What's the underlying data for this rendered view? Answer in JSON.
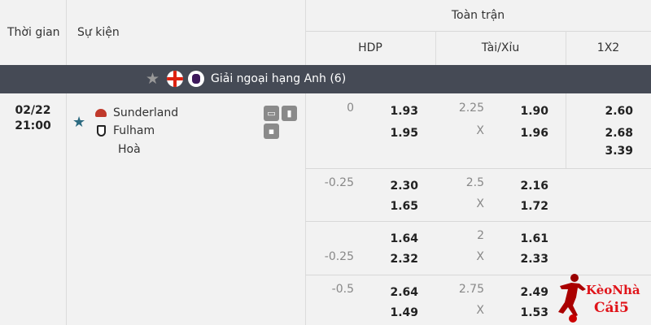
{
  "header": {
    "time": "Thời gian",
    "event": "Sự kiện",
    "full_match": "Toàn trận",
    "hdp": "HDP",
    "ou": "Tài/Xỉu",
    "x12": "1X2"
  },
  "league": {
    "name": "Giải ngoại hạng Anh (6)",
    "flag": "england-flag",
    "logo": "premier-league-logo"
  },
  "match": {
    "date": "02/22",
    "time": "21:00",
    "home": "Sunderland",
    "away": "Fulham",
    "draw": "Hoà"
  },
  "rows": [
    {
      "hdp_line_top": "0",
      "hdp_line_bottom": "",
      "hdp_top": "1.93",
      "hdp_bottom": "1.95",
      "ou_line": "2.25",
      "ou_x": "X",
      "ou_top": "1.90",
      "ou_bottom": "1.96",
      "x1": "2.60",
      "x2": "2.68",
      "x3": "3.39"
    },
    {
      "hdp_line_top": "-0.25",
      "hdp_line_bottom": "",
      "hdp_top": "2.30",
      "hdp_bottom": "1.65",
      "ou_line": "2.5",
      "ou_x": "X",
      "ou_top": "2.16",
      "ou_bottom": "1.72"
    },
    {
      "hdp_line_top": "",
      "hdp_line_bottom": "-0.25",
      "hdp_top": "1.64",
      "hdp_bottom": "2.32",
      "ou_line": "2",
      "ou_x": "X",
      "ou_top": "1.61",
      "ou_bottom": "2.33"
    },
    {
      "hdp_line_top": "-0.5",
      "hdp_line_bottom": "",
      "hdp_top": "2.64",
      "hdp_bottom": "1.49",
      "ou_line": "2.75",
      "ou_x": "X",
      "ou_top": "2.49",
      "ou_bottom": "1.53"
    }
  ],
  "watermark": {
    "line1": "KèoNhà",
    "line2": "Cái5"
  },
  "colors": {
    "league_bar": "#454a55",
    "star": "#2c6a80",
    "watermark": "#e0141a"
  }
}
